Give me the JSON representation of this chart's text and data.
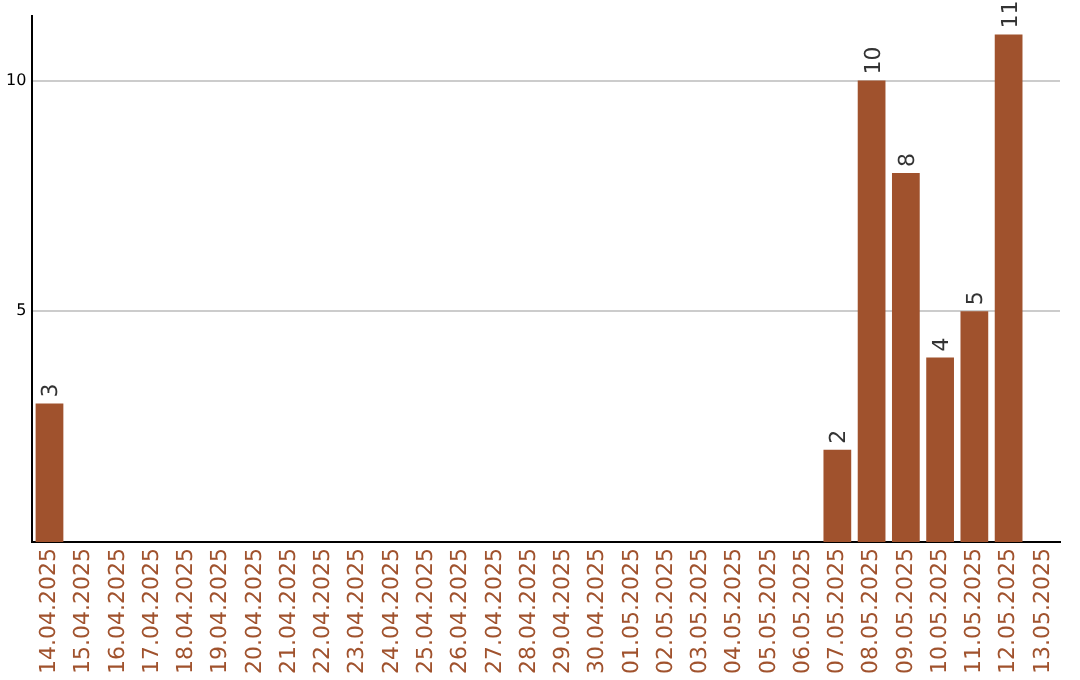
{
  "chart_data": {
    "type": "bar",
    "categories": [
      "14.04.2025",
      "15.04.2025",
      "16.04.2025",
      "17.04.2025",
      "18.04.2025",
      "19.04.2025",
      "20.04.2025",
      "21.04.2025",
      "22.04.2025",
      "23.04.2025",
      "24.04.2025",
      "25.04.2025",
      "26.04.2025",
      "27.04.2025",
      "28.04.2025",
      "29.04.2025",
      "30.04.2025",
      "01.05.2025",
      "02.05.2025",
      "03.05.2025",
      "04.05.2025",
      "05.05.2025",
      "06.05.2025",
      "07.05.2025",
      "08.05.2025",
      "09.05.2025",
      "10.05.2025",
      "11.05.2025",
      "12.05.2025",
      "13.05.2025"
    ],
    "values": [
      3,
      0,
      0,
      0,
      0,
      0,
      0,
      0,
      0,
      0,
      0,
      0,
      0,
      0,
      0,
      0,
      0,
      0,
      0,
      0,
      0,
      0,
      0,
      2,
      10,
      8,
      4,
      5,
      11,
      0
    ],
    "value_labels": [
      "3",
      null,
      null,
      null,
      null,
      null,
      null,
      null,
      null,
      null,
      null,
      null,
      null,
      null,
      null,
      null,
      null,
      null,
      null,
      null,
      null,
      null,
      null,
      "2",
      "10",
      "8",
      "4",
      "5",
      "11",
      null
    ],
    "color": "#a0522d",
    "ylim": [
      0,
      11.4
    ],
    "yticks": [
      5,
      10
    ],
    "grid": "y",
    "legend": false
  }
}
